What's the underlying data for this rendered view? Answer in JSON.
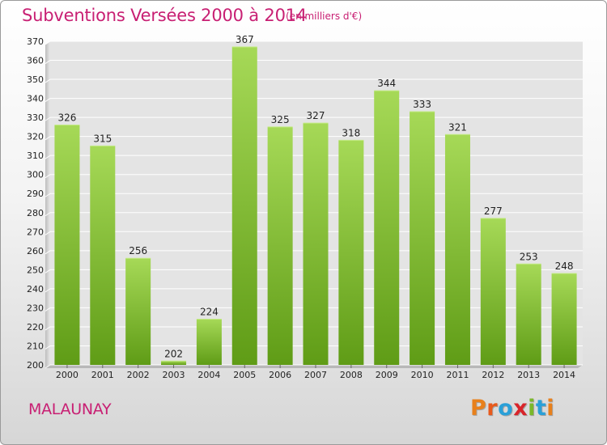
{
  "header": {
    "title": "Subventions Versées 2000 à 2014",
    "subtitle": "(en milliers d'€)"
  },
  "footer": {
    "commune": "MALAUNAY",
    "logo_letters": [
      "P",
      "r",
      "o",
      "x",
      "i",
      "t",
      "i"
    ],
    "logo_colors": [
      "#e8801c",
      "#e85a1c",
      "#2aa0d8",
      "#d8242a",
      "#7ab82a",
      "#2aa0d8",
      "#e8801c"
    ]
  },
  "colors": {
    "bar_top": "#a6d957",
    "bar_bottom": "#5f9c16",
    "grid": "#ffffff",
    "plot_bg": "#e4e4e4",
    "accent": "#c81f73"
  },
  "chart_data": {
    "type": "bar",
    "title": "Subventions Versées 2000 à 2014",
    "subtitle": "(en milliers d'€)",
    "categories": [
      "2000",
      "2001",
      "2002",
      "2003",
      "2004",
      "2005",
      "2006",
      "2007",
      "2008",
      "2009",
      "2010",
      "2011",
      "2012",
      "2013",
      "2014"
    ],
    "values": [
      326,
      315,
      256,
      202,
      224,
      367,
      325,
      327,
      318,
      344,
      333,
      321,
      277,
      253,
      248
    ],
    "ylim": [
      200,
      370
    ],
    "ytick_step": 10,
    "grid": true,
    "data_labels": true
  }
}
